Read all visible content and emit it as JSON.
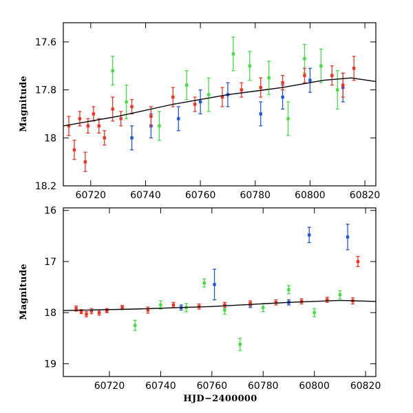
{
  "chart_data": [
    {
      "type": "scatter",
      "title": "",
      "xlabel": "",
      "ylabel": "Magnitude",
      "xlim": [
        60710,
        60824
      ],
      "ylim": [
        18.2,
        17.52
      ],
      "y_inverted": true,
      "xticks": [
        60720,
        60740,
        60760,
        60780,
        60800,
        60820
      ],
      "yticks": [
        17.6,
        17.8,
        18,
        18.2
      ],
      "ytick_labels": [
        "17.6",
        "17.8",
        "18",
        "18.2"
      ],
      "grid": false,
      "legend": "none",
      "colors": {
        "red": "#ee3322",
        "green": "#44dd44",
        "blue": "#2255dd",
        "curve": "#000000"
      },
      "model_curve": {
        "x": [
          60710,
          60730,
          60750,
          60770,
          60790,
          60805,
          60815,
          60824
        ],
        "y": [
          17.95,
          17.91,
          17.86,
          17.82,
          17.79,
          17.76,
          17.75,
          17.765
        ]
      },
      "series": [
        {
          "color": "red",
          "x": [
            60712,
            60714,
            60716,
            60718,
            60719,
            60721,
            60723,
            60725,
            60728,
            60731,
            60735,
            60742,
            60750,
            60758,
            60768,
            60775,
            60782,
            60790,
            60798,
            60808,
            60812,
            60816
          ],
          "y": [
            17.95,
            18.05,
            17.92,
            18.1,
            17.95,
            17.9,
            17.95,
            18.0,
            17.88,
            17.92,
            17.87,
            17.91,
            17.83,
            17.86,
            17.83,
            17.8,
            17.79,
            17.77,
            17.74,
            17.74,
            17.78,
            17.71
          ],
          "err": [
            0.04,
            0.04,
            0.03,
            0.04,
            0.03,
            0.03,
            0.03,
            0.03,
            0.05,
            0.03,
            0.03,
            0.04,
            0.04,
            0.03,
            0.04,
            0.03,
            0.04,
            0.03,
            0.03,
            0.04,
            0.05,
            0.05
          ]
        },
        {
          "color": "green",
          "x": [
            60728,
            60733,
            60745,
            60755,
            60763,
            60772,
            60778,
            60785,
            60792,
            60798,
            60804,
            60810
          ],
          "y": [
            17.72,
            17.85,
            17.95,
            17.78,
            17.82,
            17.65,
            17.7,
            17.75,
            17.92,
            17.67,
            17.7,
            17.8
          ],
          "err": [
            0.06,
            0.07,
            0.06,
            0.06,
            0.07,
            0.07,
            0.06,
            0.07,
            0.07,
            0.06,
            0.07,
            0.08
          ]
        },
        {
          "color": "blue",
          "x": [
            60735,
            60742,
            60752,
            60760,
            60770,
            60782,
            60790,
            60800,
            60812
          ],
          "y": [
            18.0,
            17.95,
            17.92,
            17.85,
            17.82,
            17.9,
            17.83,
            17.76,
            17.79
          ],
          "err": [
            0.05,
            0.05,
            0.05,
            0.05,
            0.05,
            0.05,
            0.05,
            0.05,
            0.06
          ]
        }
      ]
    },
    {
      "type": "scatter",
      "title": "",
      "xlabel": "HJD−2400000",
      "ylabel": "Magnitude",
      "xlim": [
        60702,
        60824
      ],
      "ylim": [
        19.25,
        15.95
      ],
      "y_inverted": true,
      "xticks": [
        60720,
        60740,
        60760,
        60780,
        60800,
        60820
      ],
      "yticks": [
        16,
        17,
        18,
        19
      ],
      "ytick_labels": [
        "16",
        "17",
        "18",
        "19"
      ],
      "grid": false,
      "legend": "none",
      "colors": {
        "red": "#ee3322",
        "green": "#44dd44",
        "blue": "#2255dd",
        "curve": "#000000"
      },
      "model_curve": {
        "x": [
          60702,
          60730,
          60760,
          60790,
          60810,
          60824
        ],
        "y": [
          17.96,
          17.93,
          17.88,
          17.8,
          17.76,
          17.78
        ]
      },
      "series": [
        {
          "color": "red",
          "x": [
            60707,
            60709,
            60711,
            60713,
            60716,
            60719,
            60725,
            60735,
            60745,
            60755,
            60765,
            60775,
            60785,
            60795,
            60805,
            60815,
            60817
          ],
          "y": [
            17.92,
            17.98,
            18.03,
            17.97,
            18.0,
            17.96,
            17.9,
            17.95,
            17.85,
            17.88,
            17.85,
            17.82,
            17.8,
            17.78,
            17.75,
            17.77,
            17.0
          ],
          "err": [
            0.05,
            0.04,
            0.05,
            0.05,
            0.05,
            0.04,
            0.04,
            0.06,
            0.05,
            0.05,
            0.05,
            0.05,
            0.05,
            0.05,
            0.05,
            0.06,
            0.1
          ]
        },
        {
          "color": "green",
          "x": [
            60730,
            60740,
            60750,
            60757,
            60765,
            60771,
            60780,
            60790,
            60800,
            60810
          ],
          "y": [
            18.25,
            17.85,
            17.9,
            17.42,
            17.95,
            18.62,
            17.9,
            17.55,
            18.0,
            17.65
          ],
          "err": [
            0.1,
            0.08,
            0.08,
            0.08,
            0.08,
            0.12,
            0.08,
            0.08,
            0.08,
            0.08
          ]
        },
        {
          "color": "blue",
          "x": [
            60748,
            60761,
            60775,
            60790,
            60798,
            60813
          ],
          "y": [
            17.9,
            17.45,
            17.85,
            17.8,
            16.48,
            16.52
          ],
          "err": [
            0.05,
            0.3,
            0.05,
            0.05,
            0.15,
            0.25
          ]
        }
      ]
    }
  ]
}
